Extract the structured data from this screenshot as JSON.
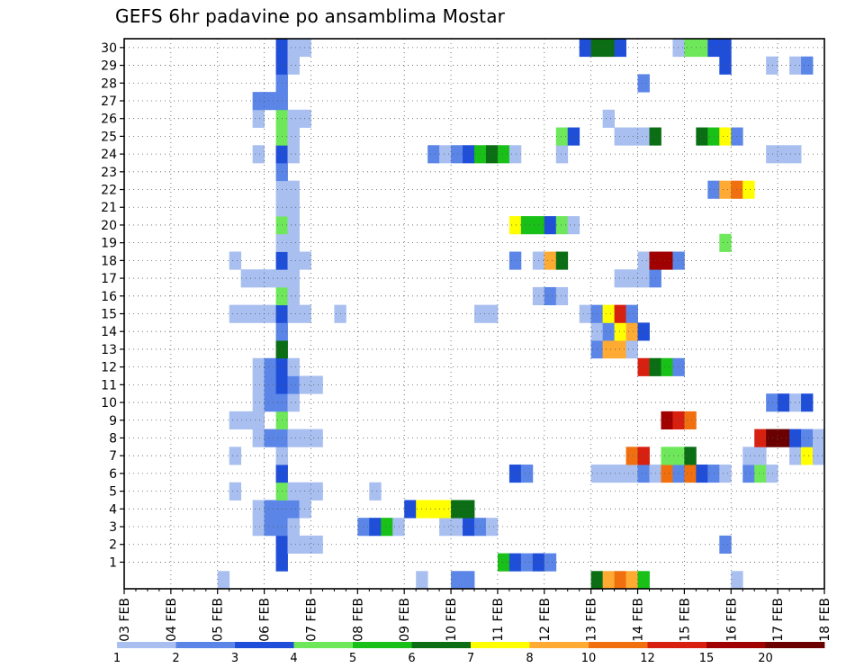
{
  "chart_data": {
    "type": "heatmap",
    "title": "GEFS 6hr padavine po ansamblima Mostar",
    "x_ticks": [
      "03 FEB",
      "04 FEB",
      "05 FEB",
      "06 FEB",
      "07 FEB",
      "08 FEB",
      "09 FEB",
      "10 FEB",
      "11 FEB",
      "12 FEB",
      "13 FEB",
      "14 FEB",
      "15 FEB",
      "16 FEB",
      "17 FEB",
      "18 FEB"
    ],
    "x_range": [
      "03 FEB 00Z",
      "18 FEB 00Z"
    ],
    "x_step_hours": 6,
    "y_ticks": [
      1,
      2,
      3,
      4,
      5,
      6,
      7,
      8,
      9,
      10,
      11,
      12,
      13,
      14,
      15,
      16,
      17,
      18,
      19,
      20,
      21,
      22,
      23,
      24,
      25,
      26,
      27,
      28,
      29,
      30
    ],
    "y_range": [
      0,
      30
    ],
    "grid": true,
    "legend": {
      "position": "bottom",
      "labels": [
        "1",
        "2",
        "3",
        "4",
        "5",
        "6",
        "7",
        "8",
        "10",
        "12",
        "15",
        "20"
      ],
      "colors": [
        "#a8bff0",
        "#5b86e8",
        "#1f4fd8",
        "#6ee85a",
        "#18c018",
        "#0b6e14",
        "#ffff00",
        "#ffaa33",
        "#f07010",
        "#d82010",
        "#a00000",
        "#6a0000"
      ]
    },
    "cells": [
      {
        "member": 0,
        "t": [
          [
            8,
            0
          ],
          [
            25,
            0
          ],
          [
            28,
            1
          ],
          [
            29,
            1
          ],
          [
            40,
            5
          ],
          [
            41,
            7
          ],
          [
            42,
            8
          ],
          [
            43,
            7
          ],
          [
            44,
            4
          ],
          [
            52,
            0
          ]
        ]
      },
      {
        "member": 1,
        "t": [
          [
            13,
            2
          ],
          [
            32,
            4
          ],
          [
            33,
            2
          ],
          [
            34,
            1
          ],
          [
            35,
            2
          ],
          [
            36,
            1
          ]
        ]
      },
      {
        "member": 2,
        "t": [
          [
            13,
            2
          ],
          [
            14,
            0
          ],
          [
            15,
            0
          ],
          [
            16,
            0
          ],
          [
            51,
            1
          ]
        ]
      },
      {
        "member": 3,
        "t": [
          [
            11,
            0
          ],
          [
            12,
            1
          ],
          [
            13,
            1
          ],
          [
            14,
            0
          ],
          [
            20,
            1
          ],
          [
            21,
            2
          ],
          [
            22,
            4
          ],
          [
            23,
            0
          ],
          [
            27,
            0
          ],
          [
            28,
            0
          ],
          [
            29,
            2
          ],
          [
            30,
            1
          ],
          [
            31,
            0
          ]
        ]
      },
      {
        "member": 4,
        "t": [
          [
            11,
            0
          ],
          [
            12,
            1
          ],
          [
            13,
            1
          ],
          [
            14,
            1
          ],
          [
            15,
            0
          ],
          [
            24,
            2
          ],
          [
            25,
            6
          ],
          [
            26,
            6
          ],
          [
            27,
            6
          ],
          [
            28,
            5
          ],
          [
            29,
            5
          ]
        ]
      },
      {
        "member": 5,
        "t": [
          [
            9,
            0
          ],
          [
            13,
            3
          ],
          [
            14,
            0
          ],
          [
            15,
            0
          ],
          [
            16,
            0
          ],
          [
            21,
            0
          ]
        ]
      },
      {
        "member": 6,
        "t": [
          [
            13,
            2
          ],
          [
            33,
            2
          ],
          [
            34,
            1
          ],
          [
            40,
            0
          ],
          [
            41,
            0
          ],
          [
            42,
            0
          ],
          [
            43,
            0
          ],
          [
            44,
            1
          ],
          [
            45,
            0
          ],
          [
            46,
            8
          ],
          [
            47,
            1
          ],
          [
            48,
            8
          ],
          [
            49,
            2
          ],
          [
            50,
            1
          ],
          [
            51,
            0
          ],
          [
            53,
            1
          ],
          [
            54,
            3
          ],
          [
            55,
            0
          ]
        ]
      },
      {
        "member": 7,
        "t": [
          [
            9,
            0
          ],
          [
            13,
            0
          ],
          [
            43,
            8
          ],
          [
            44,
            9
          ],
          [
            46,
            3
          ],
          [
            47,
            3
          ],
          [
            48,
            5
          ],
          [
            53,
            0
          ],
          [
            54,
            0
          ],
          [
            57,
            0
          ],
          [
            58,
            6
          ],
          [
            59,
            0
          ]
        ]
      },
      {
        "member": 8,
        "t": [
          [
            11,
            0
          ],
          [
            12,
            1
          ],
          [
            13,
            1
          ],
          [
            14,
            0
          ],
          [
            15,
            0
          ],
          [
            16,
            0
          ],
          [
            54,
            9
          ],
          [
            55,
            11
          ],
          [
            56,
            11
          ],
          [
            57,
            2
          ],
          [
            58,
            1
          ],
          [
            59,
            0
          ]
        ]
      },
      {
        "member": 9,
        "t": [
          [
            9,
            0
          ],
          [
            10,
            0
          ],
          [
            11,
            0
          ],
          [
            13,
            3
          ],
          [
            46,
            10
          ],
          [
            47,
            9
          ],
          [
            48,
            8
          ]
        ]
      },
      {
        "member": 10,
        "t": [
          [
            11,
            0
          ],
          [
            12,
            1
          ],
          [
            13,
            1
          ],
          [
            14,
            0
          ],
          [
            55,
            1
          ],
          [
            56,
            2
          ],
          [
            57,
            0
          ],
          [
            58,
            2
          ]
        ]
      },
      {
        "member": 11,
        "t": [
          [
            11,
            0
          ],
          [
            12,
            1
          ],
          [
            13,
            2
          ],
          [
            14,
            1
          ],
          [
            15,
            0
          ],
          [
            16,
            0
          ]
        ]
      },
      {
        "member": 12,
        "t": [
          [
            11,
            0
          ],
          [
            12,
            1
          ],
          [
            13,
            2
          ],
          [
            14,
            0
          ],
          [
            44,
            9
          ],
          [
            45,
            5
          ],
          [
            46,
            4
          ],
          [
            47,
            1
          ]
        ]
      },
      {
        "member": 13,
        "t": [
          [
            13,
            5
          ],
          [
            40,
            1
          ],
          [
            41,
            7
          ],
          [
            42,
            7
          ],
          [
            43,
            0
          ]
        ]
      },
      {
        "member": 14,
        "t": [
          [
            13,
            1
          ],
          [
            40,
            0
          ],
          [
            41,
            1
          ],
          [
            42,
            6
          ],
          [
            43,
            7
          ],
          [
            44,
            2
          ]
        ]
      },
      {
        "member": 15,
        "t": [
          [
            9,
            0
          ],
          [
            10,
            0
          ],
          [
            11,
            0
          ],
          [
            12,
            0
          ],
          [
            13,
            2
          ],
          [
            14,
            0
          ],
          [
            15,
            0
          ],
          [
            18,
            0
          ],
          [
            30,
            0
          ],
          [
            31,
            0
          ],
          [
            39,
            0
          ],
          [
            40,
            1
          ],
          [
            41,
            6
          ],
          [
            42,
            9
          ],
          [
            43,
            1
          ]
        ]
      },
      {
        "member": 16,
        "t": [
          [
            13,
            3
          ],
          [
            14,
            0
          ],
          [
            35,
            0
          ],
          [
            36,
            1
          ],
          [
            37,
            0
          ]
        ]
      },
      {
        "member": 17,
        "t": [
          [
            10,
            0
          ],
          [
            11,
            0
          ],
          [
            12,
            0
          ],
          [
            13,
            0
          ],
          [
            14,
            0
          ],
          [
            42,
            0
          ],
          [
            43,
            0
          ],
          [
            44,
            0
          ],
          [
            45,
            1
          ]
        ]
      },
      {
        "member": 18,
        "t": [
          [
            9,
            0
          ],
          [
            13,
            2
          ],
          [
            14,
            0
          ],
          [
            15,
            0
          ],
          [
            33,
            1
          ],
          [
            35,
            0
          ],
          [
            36,
            7
          ],
          [
            37,
            5
          ],
          [
            44,
            0
          ],
          [
            45,
            10
          ],
          [
            46,
            10
          ],
          [
            47,
            1
          ]
        ]
      },
      {
        "member": 19,
        "t": [
          [
            13,
            0
          ],
          [
            14,
            0
          ],
          [
            51,
            3
          ]
        ]
      },
      {
        "member": 20,
        "t": [
          [
            13,
            3
          ],
          [
            14,
            0
          ],
          [
            33,
            6
          ],
          [
            34,
            4
          ],
          [
            35,
            4
          ],
          [
            36,
            2
          ],
          [
            37,
            3
          ],
          [
            38,
            0
          ]
        ]
      },
      {
        "member": 21,
        "t": [
          [
            13,
            0
          ],
          [
            14,
            0
          ]
        ]
      },
      {
        "member": 22,
        "t": [
          [
            13,
            0
          ],
          [
            14,
            0
          ],
          [
            50,
            1
          ],
          [
            51,
            7
          ],
          [
            52,
            8
          ],
          [
            53,
            6
          ]
        ]
      },
      {
        "member": 23,
        "t": [
          [
            13,
            1
          ]
        ]
      },
      {
        "member": 24,
        "t": [
          [
            11,
            0
          ],
          [
            13,
            2
          ],
          [
            14,
            0
          ],
          [
            26,
            1
          ],
          [
            27,
            0
          ],
          [
            28,
            1
          ],
          [
            29,
            2
          ],
          [
            30,
            4
          ],
          [
            31,
            5
          ],
          [
            32,
            4
          ],
          [
            33,
            0
          ],
          [
            37,
            0
          ],
          [
            55,
            0
          ],
          [
            56,
            0
          ],
          [
            57,
            0
          ]
        ]
      },
      {
        "member": 25,
        "t": [
          [
            13,
            3
          ],
          [
            14,
            0
          ],
          [
            37,
            3
          ],
          [
            38,
            2
          ],
          [
            42,
            0
          ],
          [
            43,
            0
          ],
          [
            44,
            0
          ],
          [
            45,
            5
          ],
          [
            49,
            5
          ],
          [
            50,
            4
          ],
          [
            51,
            6
          ],
          [
            52,
            1
          ]
        ]
      },
      {
        "member": 26,
        "t": [
          [
            11,
            0
          ],
          [
            13,
            3
          ],
          [
            14,
            0
          ],
          [
            15,
            0
          ],
          [
            41,
            0
          ]
        ]
      },
      {
        "member": 27,
        "t": [
          [
            11,
            1
          ],
          [
            12,
            1
          ],
          [
            13,
            1
          ]
        ]
      },
      {
        "member": 28,
        "t": [
          [
            13,
            1
          ],
          [
            44,
            1
          ]
        ]
      },
      {
        "member": 29,
        "t": [
          [
            13,
            2
          ],
          [
            14,
            0
          ],
          [
            51,
            2
          ],
          [
            55,
            0
          ],
          [
            57,
            0
          ],
          [
            58,
            1
          ]
        ]
      },
      {
        "member": 30,
        "t": [
          [
            13,
            2
          ],
          [
            14,
            0
          ],
          [
            15,
            0
          ],
          [
            39,
            2
          ],
          [
            40,
            5
          ],
          [
            41,
            5
          ],
          [
            42,
            2
          ],
          [
            47,
            0
          ],
          [
            48,
            3
          ],
          [
            49,
            3
          ],
          [
            50,
            2
          ],
          [
            51,
            2
          ]
        ]
      }
    ]
  }
}
